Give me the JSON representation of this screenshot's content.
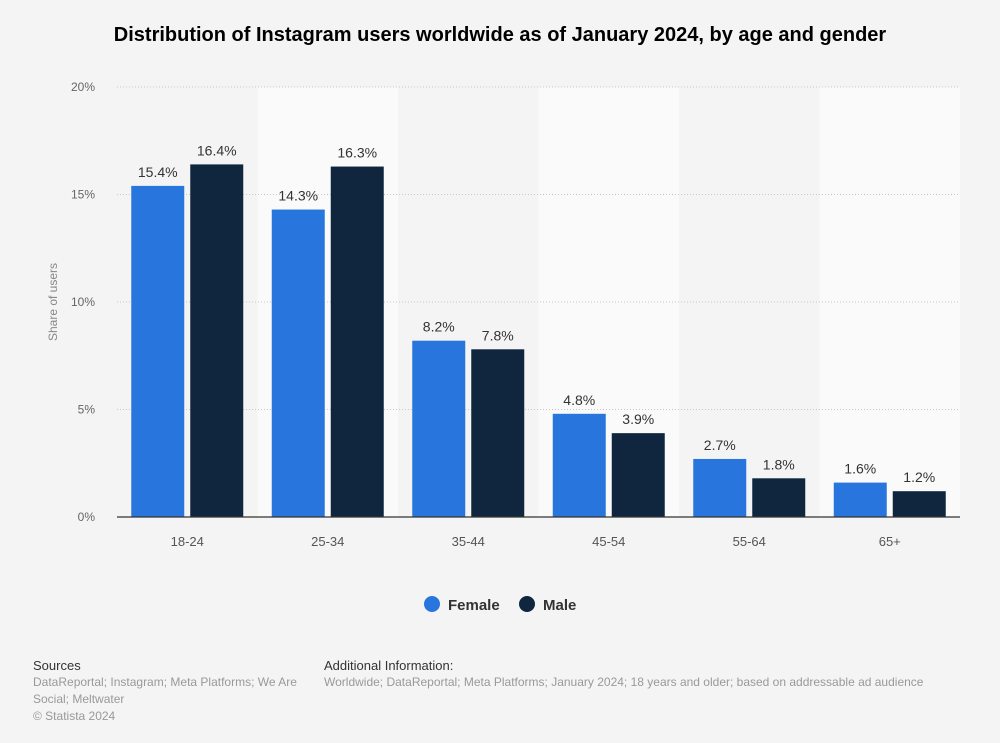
{
  "chart_data": {
    "type": "bar",
    "title": "Distribution of Instagram users worldwide as of January 2024, by age and gender",
    "xlabel": "",
    "ylabel": "Share of users",
    "ylim": [
      0,
      20
    ],
    "yticks": [
      0,
      5,
      10,
      15,
      20
    ],
    "ytick_labels": [
      "0%",
      "5%",
      "10%",
      "15%",
      "20%"
    ],
    "categories": [
      "18-24",
      "25-34",
      "35-44",
      "45-54",
      "55-64",
      "65+"
    ],
    "series": [
      {
        "name": "Female",
        "color": "#2876dd",
        "values": [
          15.4,
          14.3,
          8.2,
          4.8,
          2.7,
          1.6
        ],
        "labels": [
          "15.4%",
          "14.3%",
          "8.2%",
          "4.8%",
          "2.7%",
          "1.6%"
        ]
      },
      {
        "name": "Male",
        "color": "#10263e",
        "values": [
          16.4,
          16.3,
          7.8,
          3.9,
          1.8,
          1.2
        ],
        "labels": [
          "16.4%",
          "16.3%",
          "7.8%",
          "3.9%",
          "1.8%",
          "1.2%"
        ]
      }
    ],
    "grid": true,
    "legend": "bottom"
  },
  "footer": {
    "sources_title": "Sources",
    "sources_line1": "DataReportal; Instagram; Meta Platforms; We Are",
    "sources_line2": "Social; Meltwater",
    "copyright": "© Statista 2024",
    "additional_title": "Additional Information:",
    "additional_text": "Worldwide; DataReportal; Meta Platforms; January 2024; 18 years and older; based on addressable ad audience"
  }
}
